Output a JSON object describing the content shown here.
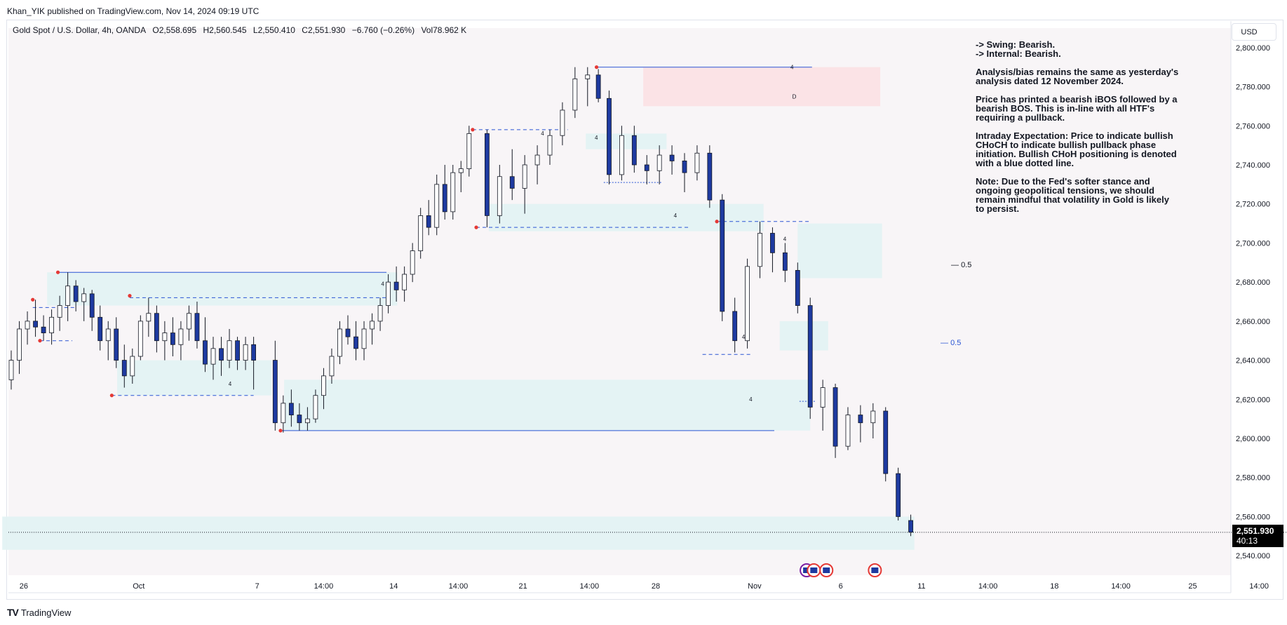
{
  "header": {
    "published": "Khan_YIK published on TradingView.com, Nov 14, 2024 09:19 UTC"
  },
  "legend": {
    "symbol": "Gold Spot / U.S. Dollar, 4h, OANDA",
    "open": "O2,558.695",
    "high": "H2,560.545",
    "low": "L2,550.410",
    "close": "C2,551.930",
    "change": "−6.760 (−0.26%)",
    "volume": "Vol78.962 K"
  },
  "currency_button": "USD",
  "last_price": {
    "price": "2,551.930",
    "countdown": "40:13"
  },
  "annotation": {
    "lines": [
      "-> Swing:  Bearish.\n-> Internal:  Bearish.",
      "Analysis/bias remains the same as yesterday's\nanalysis dated 12 November 2024.",
      "Price has printed a bearish iBOS followed by a\nbearish BOS.  This is in-line with all HTF's\nrequiring a pullback.",
      "Intraday Expectation: Price to indicate bullish\nCHoCH to indicate bullish pullback phase\ninitiation.  Bullish CHoH positioning is denoted\nwith a blue dotted line.",
      "Note: Due to the Fed's softer stance and\nongoing geopolitical tensions, we should\nremain mindful that volatility in Gold is likely\nto persist."
    ]
  },
  "fib_labels": [
    "0.5",
    "0.5"
  ],
  "box_labels": {
    "four": "4",
    "d": "D"
  },
  "footer": {
    "brand": "TradingView"
  },
  "colors": {
    "bull": "#d1d4dc",
    "bear": "#1e3aa0",
    "zone": "#e3f2f3",
    "supply": "#fbe3e6",
    "line": "#2a55d4",
    "swing_point": "#e53935"
  },
  "chart_data": {
    "type": "candlestick",
    "title": "Gold Spot / U.S. Dollar, 4h, OANDA",
    "ylim": [
      2530,
      2810
    ],
    "y_ticks": [
      2540,
      2560,
      2580,
      2600,
      2620,
      2640,
      2660,
      2680,
      2700,
      2720,
      2740,
      2760,
      2780,
      2800
    ],
    "y_tick_labels": [
      "2,540.000",
      "2,560.000",
      "2,580.000",
      "2,600.000",
      "2,620.000",
      "2,640.000",
      "2,660.000",
      "2,680.000",
      "2,700.000",
      "2,720.000",
      "2,740.000",
      "2,760.000",
      "2,780.000",
      "2,800.000"
    ],
    "x_ticks": [
      "26",
      "Oct",
      "7",
      "14:00",
      "14",
      "14:00",
      "21",
      "14:00",
      "28",
      "Nov",
      "6",
      "11",
      "14:00",
      "18",
      "14:00",
      "25",
      "14:00"
    ],
    "x_tick_pos": [
      0.7,
      7.1,
      13.7,
      17.4,
      21.3,
      24.9,
      28.5,
      32.2,
      35.9,
      41.4,
      46.2,
      50.7,
      54.4,
      58.1,
      61.8,
      65.8,
      69.5
    ],
    "candles": [
      [
        2630,
        2645,
        2625,
        2640
      ],
      [
        2640,
        2660,
        2633,
        2656
      ],
      [
        2656,
        2665,
        2648,
        2660
      ],
      [
        2660,
        2671,
        2652,
        2657
      ],
      [
        2657,
        2663,
        2650,
        2654
      ],
      [
        2654,
        2666,
        2648,
        2662
      ],
      [
        2662,
        2673,
        2655,
        2668
      ],
      [
        2668,
        2685,
        2660,
        2678
      ],
      [
        2678,
        2681,
        2665,
        2670
      ],
      [
        2670,
        2677,
        2660,
        2674
      ],
      [
        2674,
        2676,
        2655,
        2662
      ],
      [
        2662,
        2668,
        2645,
        2650
      ],
      [
        2650,
        2660,
        2640,
        2656
      ],
      [
        2656,
        2662,
        2636,
        2640
      ],
      [
        2640,
        2648,
        2626,
        2632
      ],
      [
        2632,
        2646,
        2628,
        2642
      ],
      [
        2642,
        2663,
        2640,
        2660
      ],
      [
        2660,
        2672,
        2652,
        2664
      ],
      [
        2664,
        2668,
        2644,
        2650
      ],
      [
        2650,
        2660,
        2640,
        2654
      ],
      [
        2654,
        2662,
        2642,
        2648
      ],
      [
        2648,
        2660,
        2640,
        2656
      ],
      [
        2656,
        2668,
        2650,
        2664
      ],
      [
        2664,
        2670,
        2646,
        2650
      ],
      [
        2650,
        2662,
        2634,
        2638
      ],
      [
        2638,
        2652,
        2630,
        2646
      ],
      [
        2646,
        2652,
        2632,
        2640
      ],
      [
        2640,
        2656,
        2636,
        2650
      ],
      [
        2650,
        2652,
        2635,
        2640
      ],
      [
        2640,
        2652,
        2635,
        2648
      ],
      [
        2648,
        2652,
        2625,
        2640
      ],
      [
        2640,
        2650,
        2604,
        2608
      ],
      [
        2608,
        2622,
        2603,
        2618
      ],
      [
        2618,
        2625,
        2606,
        2612
      ],
      [
        2612,
        2618,
        2604,
        2608
      ],
      [
        2608,
        2616,
        2604,
        2610
      ],
      [
        2610,
        2625,
        2608,
        2622
      ],
      [
        2622,
        2636,
        2615,
        2632
      ],
      [
        2632,
        2646,
        2628,
        2642
      ],
      [
        2642,
        2660,
        2638,
        2656
      ],
      [
        2656,
        2663,
        2648,
        2652
      ],
      [
        2652,
        2660,
        2640,
        2646
      ],
      [
        2646,
        2660,
        2640,
        2656
      ],
      [
        2656,
        2664,
        2648,
        2660
      ],
      [
        2660,
        2672,
        2655,
        2668
      ],
      [
        2668,
        2684,
        2664,
        2680
      ],
      [
        2680,
        2688,
        2670,
        2676
      ],
      [
        2676,
        2688,
        2670,
        2684
      ],
      [
        2684,
        2700,
        2680,
        2696
      ],
      [
        2696,
        2718,
        2692,
        2714
      ],
      [
        2714,
        2722,
        2704,
        2708
      ],
      [
        2708,
        2735,
        2704,
        2730
      ],
      [
        2730,
        2740,
        2712,
        2716
      ],
      [
        2716,
        2740,
        2712,
        2736
      ],
      [
        2736,
        2742,
        2726,
        2738
      ],
      [
        2738,
        2760,
        2734,
        2756
      ],
      [
        2756,
        2758,
        2708,
        2714
      ],
      [
        2714,
        2740,
        2710,
        2734
      ],
      [
        2734,
        2748,
        2722,
        2728
      ],
      [
        2728,
        2745,
        2715,
        2740
      ],
      [
        2740,
        2750,
        2730,
        2745
      ],
      [
        2745,
        2758,
        2740,
        2755
      ],
      [
        2755,
        2772,
        2750,
        2768
      ],
      [
        2768,
        2790,
        2764,
        2784
      ],
      [
        2784,
        2790,
        2770,
        2786
      ],
      [
        2786,
        2789,
        2772,
        2774
      ],
      [
        2774,
        2778,
        2730,
        2735
      ],
      [
        2735,
        2760,
        2732,
        2755
      ],
      [
        2755,
        2760,
        2736,
        2740
      ],
      [
        2740,
        2745,
        2730,
        2737
      ],
      [
        2737,
        2750,
        2730,
        2745
      ],
      [
        2745,
        2750,
        2735,
        2742
      ],
      [
        2742,
        2746,
        2726,
        2736
      ],
      [
        2736,
        2750,
        2732,
        2746
      ],
      [
        2746,
        2750,
        2718,
        2722
      ],
      [
        2722,
        2725,
        2660,
        2665
      ],
      [
        2665,
        2672,
        2644,
        2650
      ],
      [
        2650,
        2692,
        2646,
        2688
      ],
      [
        2688,
        2711,
        2682,
        2705
      ],
      [
        2705,
        2708,
        2685,
        2695
      ],
      [
        2695,
        2700,
        2680,
        2686
      ],
      [
        2686,
        2690,
        2664,
        2668
      ],
      [
        2668,
        2672,
        2610,
        2616
      ],
      [
        2616,
        2630,
        2604,
        2626
      ],
      [
        2626,
        2628,
        2590,
        2596
      ],
      [
        2596,
        2616,
        2594,
        2612
      ],
      [
        2612,
        2617,
        2598,
        2608
      ],
      [
        2608,
        2618,
        2600,
        2614
      ],
      [
        2614,
        2616,
        2578,
        2582
      ],
      [
        2582,
        2585,
        2558,
        2560
      ],
      [
        2558,
        2561,
        2550,
        2552
      ]
    ],
    "candle_x": [
      0,
      0.45,
      0.9,
      1.35,
      1.8,
      2.25,
      2.7,
      3.15,
      3.6,
      4.05,
      4.5,
      4.95,
      5.4,
      5.85,
      6.3,
      6.75,
      7.2,
      7.65,
      8.1,
      8.55,
      9,
      9.45,
      9.9,
      10.35,
      10.8,
      11.25,
      11.7,
      12.15,
      12.6,
      13.05,
      13.5,
      14.7,
      15.15,
      15.6,
      16.05,
      16.5,
      16.95,
      17.4,
      17.85,
      18.3,
      18.75,
      19.2,
      19.65,
      20.1,
      20.55,
      21.0,
      21.45,
      21.9,
      22.35,
      22.8,
      23.25,
      23.7,
      24.15,
      24.6,
      25.05,
      25.5,
      26.5,
      27.2,
      27.9,
      28.6,
      29.3,
      30,
      30.7,
      31.4,
      32.1,
      32.7,
      33.3,
      34,
      34.7,
      35.4,
      36.1,
      36.8,
      37.5,
      38.2,
      38.9,
      39.6,
      40.3,
      41.0,
      41.7,
      42.4,
      43.1,
      43.8,
      44.5,
      45.2,
      45.9,
      46.6,
      47.3,
      48,
      48.7,
      49.4,
      50.1
    ],
    "zones": [
      {
        "y1": 2668,
        "y2": 2685,
        "x1": 2.0,
        "x2": 21.5
      },
      {
        "y1": 2622,
        "y2": 2640,
        "x1": 5.9,
        "x2": 14.5
      },
      {
        "y1": 2604,
        "y2": 2630,
        "x1": 15.2,
        "x2": 44.5
      },
      {
        "y1": 2706,
        "y2": 2720,
        "x1": 26.6,
        "x2": 41.9
      },
      {
        "y1": 2748,
        "y2": 2756,
        "x1": 32.0,
        "x2": 36.5
      },
      {
        "y1": 2645,
        "y2": 2660,
        "x1": 42.8,
        "x2": 45.5
      },
      {
        "y1": 2682,
        "y2": 2710,
        "x1": 43.8,
        "x2": 48.5
      },
      {
        "y1": 2543,
        "y2": 2560,
        "x1": -0.5,
        "x2": 50.3
      }
    ],
    "supply_zone": {
      "y1": 2770,
      "y2": 2790,
      "x1": 35.2,
      "x2": 48.4
    }
  },
  "chart_axes": {}
}
